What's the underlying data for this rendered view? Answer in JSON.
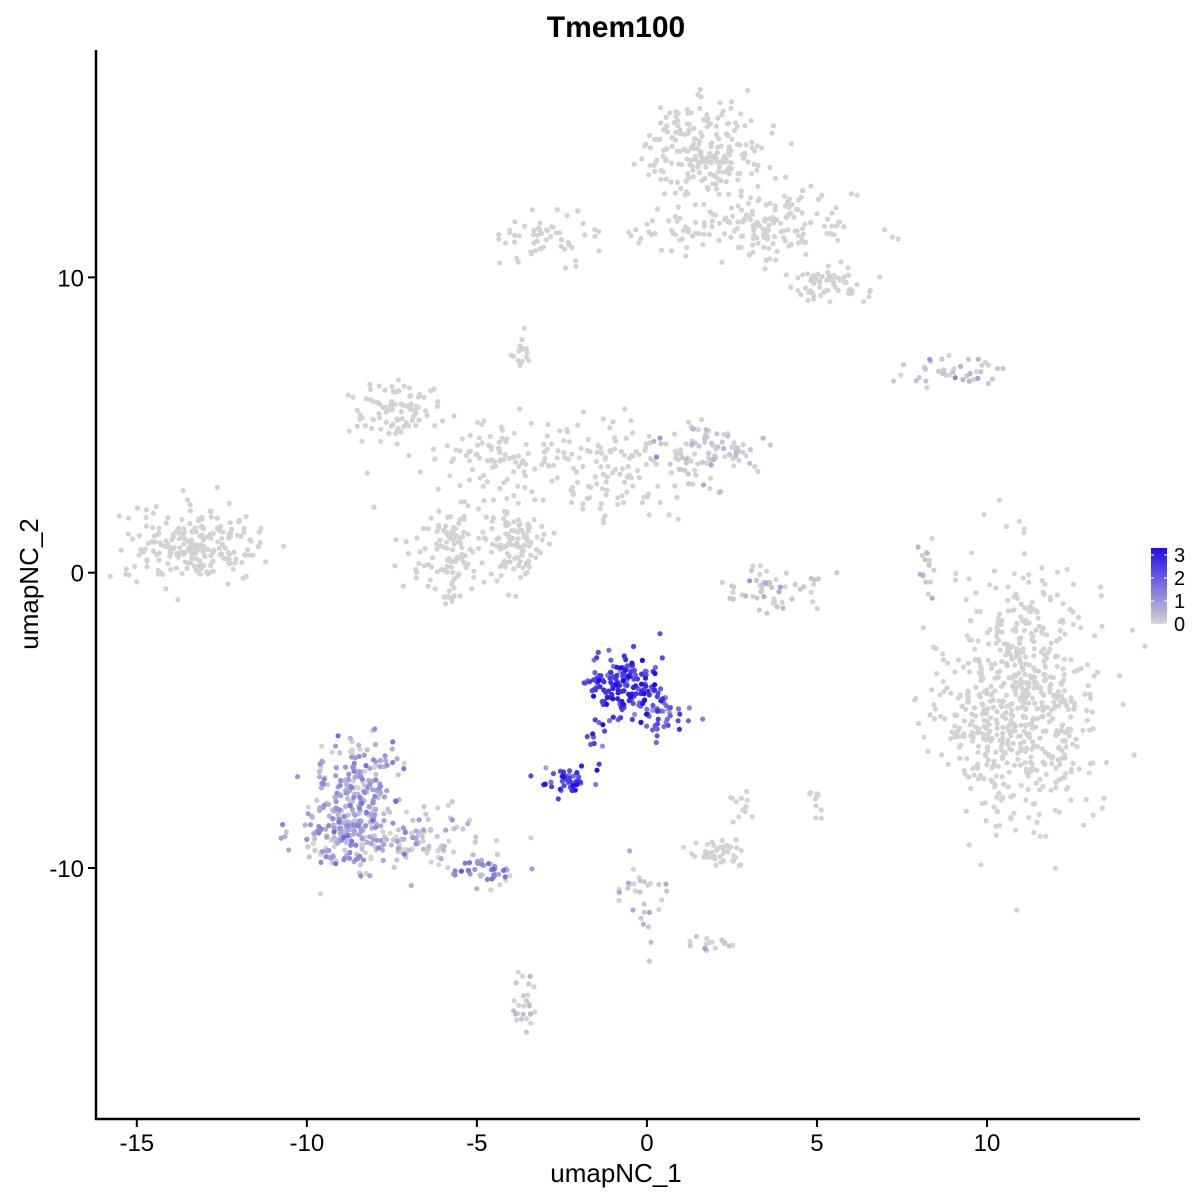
{
  "chart_data": {
    "type": "scatter",
    "title": "Tmem100",
    "xlabel": "umapNC_1",
    "ylabel": "umapNC_2",
    "xlim": [
      -16.2,
      14.5
    ],
    "ylim": [
      -18.5,
      17.7
    ],
    "x_ticks": [
      -15,
      -10,
      -5,
      0,
      5,
      10
    ],
    "x_tick_labels": [
      "-15",
      "-10",
      "-5",
      "0",
      "5",
      "10"
    ],
    "y_ticks": [
      -10,
      0,
      10
    ],
    "y_tick_labels": [
      "-10",
      "0",
      "10"
    ],
    "grid": false,
    "legend": {
      "placement": "right",
      "values": [
        3,
        2,
        1,
        0
      ],
      "labels": [
        "3",
        "2",
        "1",
        "0"
      ],
      "color_low": "#d3d3d3",
      "color_high": "#1f0fe8",
      "max_value": 3.3
    },
    "clusters": [
      {
        "cx": 11.1,
        "cy": -4.2,
        "sx": 1.1,
        "sy": 2.2,
        "n": 620,
        "expr": 0.0
      },
      {
        "cx": 1.7,
        "cy": 14.3,
        "sx": 0.9,
        "sy": 0.8,
        "n": 220,
        "expr": 0.0
      },
      {
        "cx": 3.6,
        "cy": 11.7,
        "sx": 1.3,
        "sy": 0.6,
        "n": 160,
        "expr": 0.0
      },
      {
        "cx": 5.3,
        "cy": 9.7,
        "sx": 0.6,
        "sy": 0.35,
        "n": 60,
        "expr": 0.0
      },
      {
        "cx": -2.8,
        "cy": 11.4,
        "sx": 0.7,
        "sy": 0.4,
        "n": 55,
        "expr": 0.0
      },
      {
        "cx": 0.5,
        "cy": 11.6,
        "sx": 0.9,
        "sy": 0.3,
        "n": 25,
        "expr": 0.0
      },
      {
        "cx": -13.3,
        "cy": 0.9,
        "sx": 1.0,
        "sy": 0.6,
        "n": 230,
        "expr": 0.0
      },
      {
        "cx": -7.4,
        "cy": 5.5,
        "sx": 0.7,
        "sy": 0.5,
        "n": 90,
        "expr": 0.0
      },
      {
        "cx": -4.5,
        "cy": 3.9,
        "sx": 0.9,
        "sy": 0.6,
        "n": 90,
        "expr": 0.0
      },
      {
        "cx": -5.8,
        "cy": 0.6,
        "sx": 0.6,
        "sy": 0.8,
        "n": 110,
        "expr": 0.0
      },
      {
        "cx": -3.9,
        "cy": 1.0,
        "sx": 0.5,
        "sy": 0.8,
        "n": 110,
        "expr": 0.0
      },
      {
        "cx": -1.2,
        "cy": 3.4,
        "sx": 1.3,
        "sy": 1.0,
        "n": 130,
        "expr": 0.0
      },
      {
        "cx": 1.8,
        "cy": 4.1,
        "sx": 0.7,
        "sy": 0.5,
        "n": 90,
        "expr": 0.05
      },
      {
        "cx": -3.8,
        "cy": 7.5,
        "sx": 0.2,
        "sy": 0.3,
        "n": 15,
        "expr": 0.0
      },
      {
        "cx": 9.0,
        "cy": 6.8,
        "sx": 0.9,
        "sy": 0.2,
        "n": 40,
        "expr": 0.1
      },
      {
        "cx": 3.6,
        "cy": -0.5,
        "sx": 0.7,
        "sy": 0.4,
        "n": 55,
        "expr": 0.03
      },
      {
        "cx": 8.2,
        "cy": 0.4,
        "sx": 0.1,
        "sy": 0.5,
        "n": 15,
        "expr": 0.1
      },
      {
        "cx": -0.7,
        "cy": -3.8,
        "sx": 0.45,
        "sy": 0.55,
        "n": 150,
        "expr": 2.5
      },
      {
        "cx": 0.6,
        "cy": -4.8,
        "sx": 0.4,
        "sy": 0.45,
        "n": 45,
        "expr": 2.1
      },
      {
        "cx": -2.3,
        "cy": -7.0,
        "sx": 0.35,
        "sy": 0.2,
        "n": 40,
        "expr": 2.4
      },
      {
        "cx": -1.5,
        "cy": -6.0,
        "sx": 0.3,
        "sy": 0.5,
        "n": 10,
        "expr": 2.2
      },
      {
        "cx": -8.6,
        "cy": -7.4,
        "sx": 0.6,
        "sy": 1.0,
        "n": 210,
        "expr": 0.8
      },
      {
        "cx": -8.9,
        "cy": -9.0,
        "sx": 0.8,
        "sy": 0.6,
        "n": 150,
        "expr": 0.7
      },
      {
        "cx": -6.6,
        "cy": -9.1,
        "sx": 0.9,
        "sy": 0.5,
        "n": 90,
        "expr": 0.4
      },
      {
        "cx": -4.7,
        "cy": -10.1,
        "sx": 0.5,
        "sy": 0.3,
        "n": 40,
        "expr": 1.0
      },
      {
        "cx": 2.2,
        "cy": -9.5,
        "sx": 0.4,
        "sy": 0.25,
        "n": 45,
        "expr": 0.0
      },
      {
        "cx": 2.8,
        "cy": -7.8,
        "sx": 0.2,
        "sy": 0.3,
        "n": 12,
        "expr": 0.0
      },
      {
        "cx": 5.0,
        "cy": -7.7,
        "sx": 0.1,
        "sy": 0.25,
        "n": 10,
        "expr": 0.0
      },
      {
        "cx": -0.2,
        "cy": -11.0,
        "sx": 0.3,
        "sy": 0.9,
        "n": 30,
        "expr": 0.1
      },
      {
        "cx": 2.0,
        "cy": -12.5,
        "sx": 0.4,
        "sy": 0.15,
        "n": 15,
        "expr": 0.05
      },
      {
        "cx": -3.6,
        "cy": -14.8,
        "sx": 0.2,
        "sy": 0.5,
        "n": 25,
        "expr": 0.05
      },
      {
        "cx": 9.3,
        "cy": -5.0,
        "sx": 0.5,
        "sy": 0.8,
        "n": 60,
        "expr": 0.0
      }
    ]
  }
}
